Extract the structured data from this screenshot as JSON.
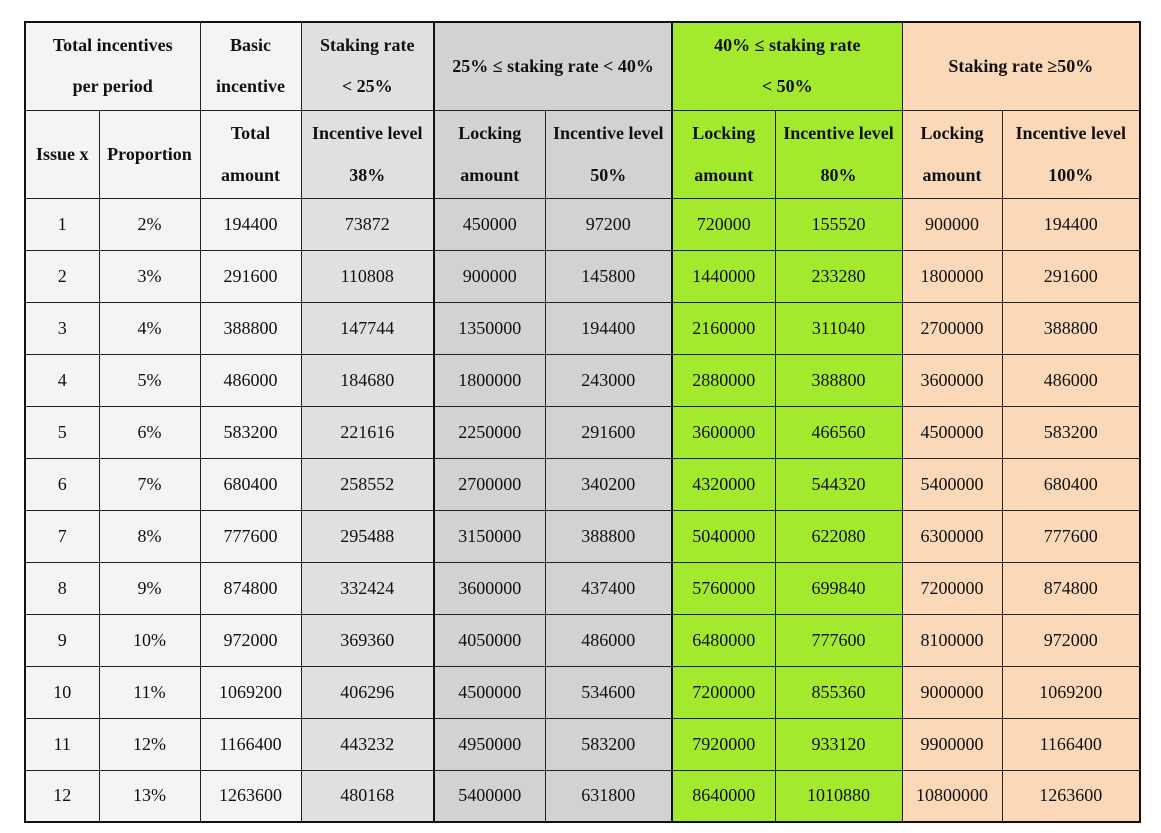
{
  "headers": {
    "total_incentives": [
      "Total incentives",
      "per period"
    ],
    "basic_incentive": [
      "Basic",
      "incentive"
    ],
    "tier1": [
      "Staking rate",
      "< 25%"
    ],
    "tier2": "25% ≤ staking rate < 40%",
    "tier3": [
      "40% ≤ staking rate",
      "< 50%"
    ],
    "tier4": "Staking rate ≥50%",
    "issue": "Issue x",
    "proportion": "Proportion",
    "total_amount": [
      "Total",
      "amount"
    ],
    "tier1_level": [
      "Incentive level",
      "38%"
    ],
    "tier2_locking": [
      "Locking",
      "amount"
    ],
    "tier2_level": [
      "Incentive level",
      "50%"
    ],
    "tier3_locking": [
      "Locking",
      "amount"
    ],
    "tier3_level": [
      "Incentive level",
      "80%"
    ],
    "tier4_locking": [
      "Locking",
      "amount"
    ],
    "tier4_level": [
      "Incentive level",
      "100%"
    ]
  },
  "rows": [
    [
      "1",
      "2%",
      "194400",
      "73872",
      "450000",
      "97200",
      "720000",
      "155520",
      "900000",
      "194400"
    ],
    [
      "2",
      "3%",
      "291600",
      "110808",
      "900000",
      "145800",
      "1440000",
      "233280",
      "1800000",
      "291600"
    ],
    [
      "3",
      "4%",
      "388800",
      "147744",
      "1350000",
      "194400",
      "2160000",
      "311040",
      "2700000",
      "388800"
    ],
    [
      "4",
      "5%",
      "486000",
      "184680",
      "1800000",
      "243000",
      "2880000",
      "388800",
      "3600000",
      "486000"
    ],
    [
      "5",
      "6%",
      "583200",
      "221616",
      "2250000",
      "291600",
      "3600000",
      "466560",
      "4500000",
      "583200"
    ],
    [
      "6",
      "7%",
      "680400",
      "258552",
      "2700000",
      "340200",
      "4320000",
      "544320",
      "5400000",
      "680400"
    ],
    [
      "7",
      "8%",
      "777600",
      "295488",
      "3150000",
      "388800",
      "5040000",
      "622080",
      "6300000",
      "777600"
    ],
    [
      "8",
      "9%",
      "874800",
      "332424",
      "3600000",
      "437400",
      "5760000",
      "699840",
      "7200000",
      "874800"
    ],
    [
      "9",
      "10%",
      "972000",
      "369360",
      "4050000",
      "486000",
      "6480000",
      "777600",
      "8100000",
      "972000"
    ],
    [
      "10",
      "11%",
      "1069200",
      "406296",
      "4500000",
      "534600",
      "7200000",
      "855360",
      "9000000",
      "1069200"
    ],
    [
      "11",
      "12%",
      "1166400",
      "443232",
      "4950000",
      "583200",
      "7920000",
      "933120",
      "9900000",
      "1166400"
    ],
    [
      "12",
      "13%",
      "1263600",
      "480168",
      "5400000",
      "631800",
      "8640000",
      "1010880",
      "10800000",
      "1263600"
    ]
  ],
  "colors": {
    "white_cell": "#f4f4f4",
    "tier1_gray": "#e0e0e0",
    "tier2_gray": "#d2d2d2",
    "tier3_green": "#a3ea2e",
    "tier4_peach": "#fad8b8"
  }
}
